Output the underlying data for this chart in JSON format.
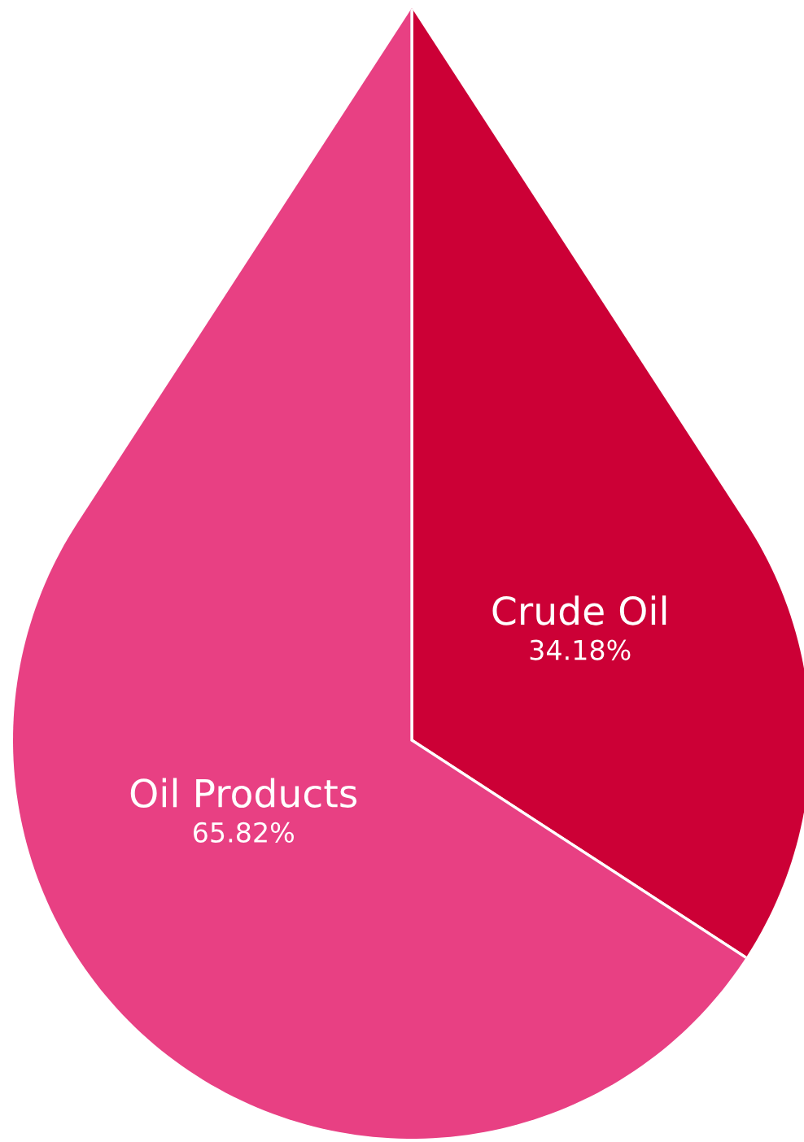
{
  "chart_data": {
    "type": "pie",
    "categories": [
      "Crude Oil",
      "Oil Products"
    ],
    "values": [
      34.18,
      65.82
    ],
    "colors": [
      "#cc0036",
      "#e84083"
    ],
    "value_labels": [
      "34.18%",
      "65.82%"
    ]
  }
}
